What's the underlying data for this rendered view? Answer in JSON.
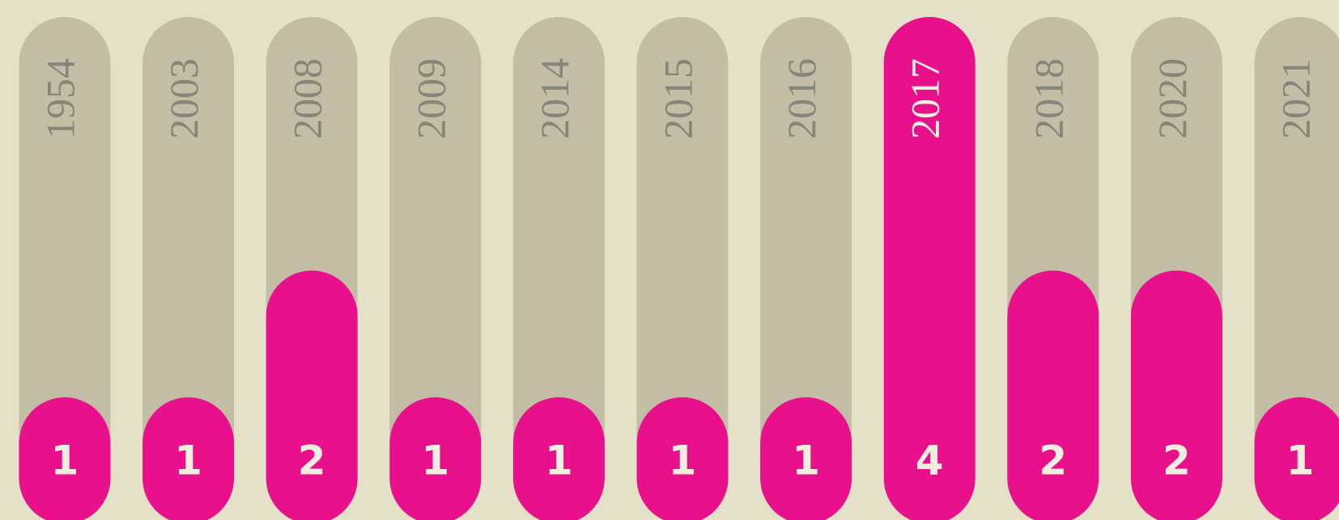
{
  "chart_data": {
    "type": "bar",
    "categories": [
      "1954",
      "2003",
      "2008",
      "2009",
      "2014",
      "2015",
      "2016",
      "2017",
      "2018",
      "2020",
      "2021"
    ],
    "values": [
      1,
      1,
      2,
      1,
      1,
      1,
      1,
      4,
      2,
      2,
      1
    ],
    "color": "#e8118b"
  }
}
